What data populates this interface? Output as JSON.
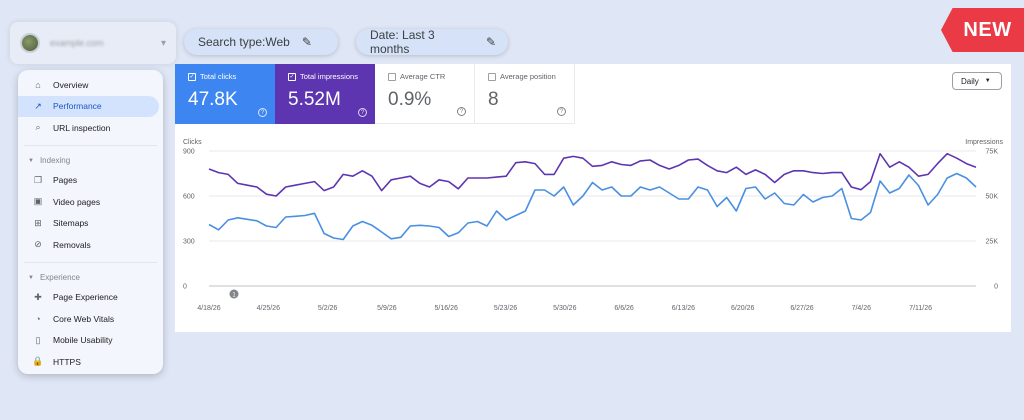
{
  "property": {
    "name": "example.com",
    "caret": "▾"
  },
  "sidebar": {
    "items": [
      {
        "label": "Overview",
        "icon": "home-icon",
        "glyph": "⌂",
        "active": false
      },
      {
        "label": "Performance",
        "icon": "trending-up-icon",
        "glyph": "↗",
        "active": true
      },
      {
        "label": "URL inspection",
        "icon": "search-icon",
        "glyph": "⌕",
        "active": false
      }
    ],
    "sections": [
      {
        "label": "Indexing",
        "items": [
          {
            "label": "Pages",
            "icon": "pages-icon",
            "glyph": "❐"
          },
          {
            "label": "Video pages",
            "icon": "video-pages-icon",
            "glyph": "▣"
          },
          {
            "label": "Sitemaps",
            "icon": "sitemaps-icon",
            "glyph": "⊞"
          },
          {
            "label": "Removals",
            "icon": "removals-icon",
            "glyph": "⊘"
          }
        ]
      },
      {
        "label": "Experience",
        "items": [
          {
            "label": "Page Experience",
            "icon": "page-experience-icon",
            "glyph": "✚"
          },
          {
            "label": "Core Web Vitals",
            "icon": "core-web-vitals-icon",
            "glyph": "◔"
          },
          {
            "label": "Mobile Usability",
            "icon": "mobile-icon",
            "glyph": "▯"
          },
          {
            "label": "HTTPS",
            "icon": "lock-icon",
            "glyph": "🔒"
          }
        ]
      }
    ]
  },
  "filters": {
    "search_type": "Search type:Web",
    "date": "Date: Last 3 months",
    "edit_glyph": "✎"
  },
  "badge": "NEW",
  "metrics": [
    {
      "key": "clicks",
      "label": "Total clicks",
      "value": "47.8K",
      "checked": true
    },
    {
      "key": "impr",
      "label": "Total impressions",
      "value": "5.52M",
      "checked": true
    },
    {
      "key": "ctr",
      "label": "Average CTR",
      "value": "0.9%",
      "checked": false
    },
    {
      "key": "pos",
      "label": "Average position",
      "value": "8",
      "checked": false
    }
  ],
  "granularity": {
    "value": "Daily",
    "caret": "▼"
  },
  "annotation_marker": "1",
  "chart_data": {
    "type": "line",
    "left_axis": {
      "label": "Clicks",
      "ticks": [
        "900",
        "600",
        "300",
        "0"
      ],
      "ylim": [
        0,
        900
      ]
    },
    "right_axis": {
      "label": "Impressions",
      "ticks": [
        "75K",
        "50K",
        "25K",
        "0"
      ],
      "ylim": [
        0,
        75000
      ]
    },
    "x_tick_labels": [
      "4/18/26",
      "4/25/26",
      "5/2/26",
      "5/9/26",
      "5/16/26",
      "5/23/26",
      "5/30/26",
      "6/6/26",
      "6/13/26",
      "6/20/26",
      "6/27/26",
      "7/4/26",
      "7/11/26"
    ],
    "colors": {
      "clicks": "#4a90e2",
      "impressions": "#5e35b1"
    },
    "series": [
      {
        "name": "Total clicks",
        "axis": "left",
        "values": [
          410,
          375,
          440,
          455,
          445,
          435,
          400,
          390,
          460,
          465,
          470,
          485,
          350,
          320,
          310,
          400,
          430,
          405,
          360,
          315,
          325,
          400,
          405,
          400,
          390,
          330,
          355,
          420,
          430,
          400,
          500,
          440,
          470,
          500,
          640,
          640,
          600,
          660,
          540,
          600,
          690,
          640,
          660,
          600,
          600,
          660,
          640,
          660,
          620,
          580,
          580,
          660,
          640,
          530,
          590,
          500,
          650,
          660,
          580,
          620,
          550,
          540,
          610,
          560,
          590,
          600,
          650,
          450,
          440,
          490,
          700,
          620,
          650,
          740,
          670,
          540,
          610,
          720,
          750,
          720,
          660
        ]
      },
      {
        "name": "Total impressions",
        "axis": "right",
        "values": [
          65000,
          63000,
          62000,
          57000,
          56000,
          55000,
          51000,
          50000,
          55000,
          56000,
          57000,
          58000,
          53000,
          55000,
          62000,
          61000,
          64000,
          61000,
          53000,
          59000,
          60000,
          61000,
          57000,
          55000,
          59000,
          58000,
          54000,
          60000,
          60000,
          60000,
          60500,
          61000,
          68500,
          69000,
          68000,
          62000,
          62000,
          71000,
          72000,
          71000,
          66500,
          67000,
          69000,
          67500,
          67000,
          69500,
          70000,
          67000,
          65000,
          67000,
          70000,
          70500,
          67000,
          64000,
          63000,
          66000,
          62000,
          64500,
          62000,
          57500,
          62000,
          64000,
          64000,
          63000,
          62500,
          63000,
          63000,
          55000,
          53500,
          58000,
          73500,
          66000,
          69000,
          66000,
          61000,
          62000,
          68000,
          73500,
          71000,
          68000,
          66000
        ]
      }
    ],
    "grid": true,
    "legend": "none"
  }
}
